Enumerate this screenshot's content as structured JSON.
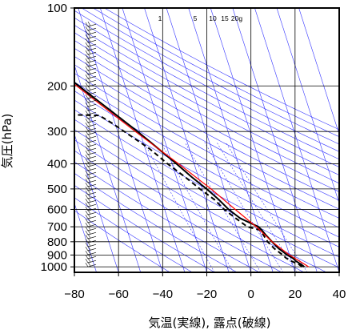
{
  "chart_data": {
    "type": "line",
    "subtype": "skew-T log-P diagram",
    "xlabel": "気温(実線), 露点(破線)",
    "ylabel": "気圧(hPa)",
    "xlim": [
      -80,
      40
    ],
    "ylim": [
      1050,
      100
    ],
    "y_scale": "log",
    "x_ticks": [
      -80,
      -60,
      -40,
      -20,
      0,
      20,
      40
    ],
    "y_ticks": [
      100,
      200,
      300,
      400,
      500,
      600,
      700,
      800,
      900,
      1000
    ],
    "mixing_ratio_labels": [
      "1",
      "5",
      "10",
      "15",
      "20g"
    ],
    "colors": {
      "temperature": "#000000",
      "dewpoint": "#000000",
      "reference_profile": "#ff0000",
      "background_lines": "#3333ff",
      "grid": "#000000"
    },
    "series": [
      {
        "style": "solid",
        "points": [
          [
            1000,
            25
          ],
          [
            980,
            24
          ],
          [
            950,
            22
          ],
          [
            925,
            21
          ],
          [
            900,
            19
          ],
          [
            850,
            16
          ],
          [
            800,
            14
          ],
          [
            750,
            12
          ],
          [
            720,
            11
          ],
          [
            700,
            10
          ],
          [
            650,
            3
          ],
          [
            600,
            -1
          ],
          [
            550,
            -4
          ],
          [
            500,
            -8
          ],
          [
            450,
            -13
          ],
          [
            400,
            -18
          ],
          [
            350,
            -24
          ],
          [
            300,
            -31
          ],
          [
            250,
            -40
          ],
          [
            200,
            -51
          ],
          [
            170,
            -59
          ],
          [
            150,
            -66
          ],
          [
            130,
            -71
          ],
          [
            120,
            -72
          ],
          [
            115,
            -73
          ],
          [
            110,
            -71
          ],
          [
            105,
            -73
          ],
          [
            100,
            -74
          ]
        ]
      },
      {
        "style": "dashed",
        "points": [
          [
            1000,
            24
          ],
          [
            980,
            23
          ],
          [
            950,
            20
          ],
          [
            925,
            18
          ],
          [
            900,
            17
          ],
          [
            850,
            14
          ],
          [
            800,
            12
          ],
          [
            750,
            11
          ],
          [
            720,
            10
          ],
          [
            700,
            5
          ],
          [
            650,
            1
          ],
          [
            600,
            -3
          ],
          [
            550,
            -6
          ],
          [
            500,
            -11
          ],
          [
            450,
            -16
          ],
          [
            400,
            -22
          ],
          [
            350,
            -28
          ],
          [
            300,
            -37
          ],
          [
            280,
            -41
          ],
          [
            260,
            -46
          ],
          [
            258,
            -65
          ],
          [
            255,
            -80
          ]
        ]
      },
      {
        "style": "solid",
        "points": [
          [
            1000,
            27
          ],
          [
            900,
            20
          ],
          [
            800,
            14
          ],
          [
            700,
            9
          ],
          [
            600,
            2
          ],
          [
            500,
            -6
          ],
          [
            400,
            -17
          ],
          [
            300,
            -32
          ],
          [
            250,
            -41
          ],
          [
            200,
            -52
          ],
          [
            150,
            -67
          ],
          [
            130,
            -73
          ],
          [
            120,
            -76
          ]
        ]
      }
    ]
  }
}
